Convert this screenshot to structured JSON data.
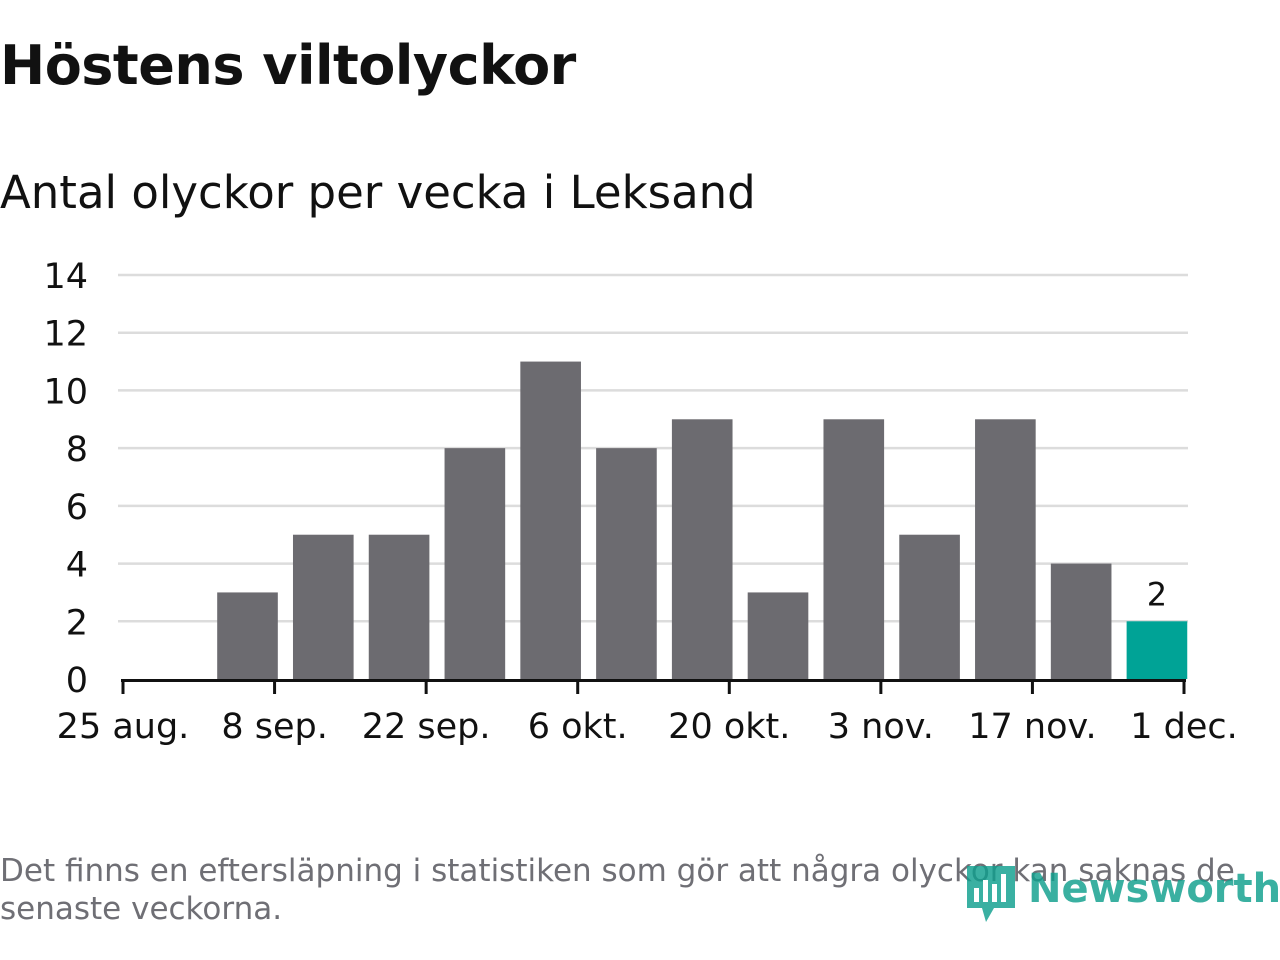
{
  "title": "Höstens viltolyckor",
  "subtitle": "Antal olyckor per vecka i Leksand",
  "footnote": "Det finns en eftersläpning i statistiken som gör att några olyckor kan saknas de senaste veckorna.",
  "logo": {
    "text": "Newsworthy",
    "icon": "newsworthy-logo-icon"
  },
  "colors": {
    "bar": "#6c6b70",
    "highlight": "#00a396",
    "grid": "#dcdcdc",
    "axis": "#111111",
    "text": "#111111",
    "footnote": "#6f6f75",
    "logo": "#0f9f8d"
  },
  "chart_data": {
    "type": "bar",
    "title": "Höstens viltolyckor",
    "subtitle": "Antal olyckor per vecka i Leksand",
    "xlabel": "",
    "ylabel": "",
    "ylim": [
      0,
      14
    ],
    "yticks": [
      0,
      2,
      4,
      6,
      8,
      10,
      12,
      14
    ],
    "x_axis": {
      "start": "2019-08-25",
      "end": "2019-12-01",
      "ticks": [
        {
          "date": "2019-08-25",
          "label": "25 aug."
        },
        {
          "date": "2019-09-08",
          "label": "8 sep."
        },
        {
          "date": "2019-09-22",
          "label": "22 sep."
        },
        {
          "date": "2019-10-06",
          "label": "6 okt."
        },
        {
          "date": "2019-10-20",
          "label": "20 okt."
        },
        {
          "date": "2019-11-03",
          "label": "3 nov."
        },
        {
          "date": "2019-11-17",
          "label": "17 nov."
        },
        {
          "date": "2019-12-01",
          "label": "1 dec."
        }
      ]
    },
    "grid": true,
    "legend": "none",
    "series": [
      {
        "x": [
          "2019-09-02",
          "2019-09-09",
          "2019-09-16",
          "2019-09-23",
          "2019-09-30",
          "2019-10-07",
          "2019-10-14",
          "2019-10-21",
          "2019-10-28",
          "2019-11-04",
          "2019-11-11",
          "2019-11-18",
          "2019-11-25"
        ],
        "values": [
          3,
          5,
          5,
          8,
          11,
          8,
          9,
          3,
          9,
          5,
          9,
          4,
          2
        ]
      }
    ],
    "highlight_last": true,
    "data_labels": [
      {
        "date": "2019-11-25",
        "value": 2,
        "label": "2"
      }
    ]
  }
}
